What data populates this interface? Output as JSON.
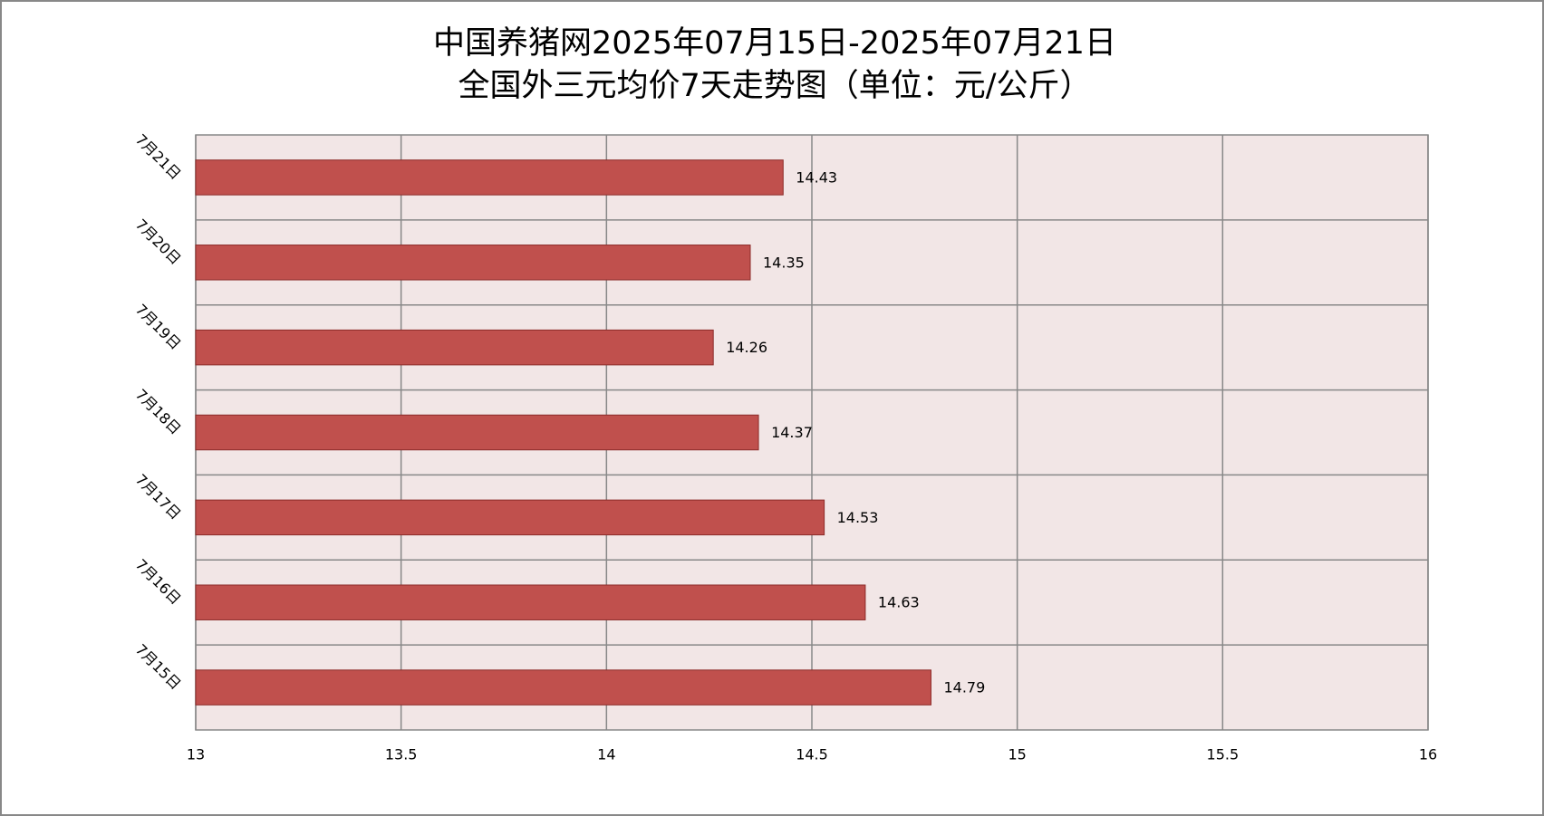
{
  "chart_data": {
    "type": "bar",
    "orientation": "horizontal",
    "title": [
      "中国养猪网2025年07月15日-2025年07月21日",
      "全国外三元均价7天走势图（单位：元/公斤）"
    ],
    "categories": [
      "7月21日",
      "7月20日",
      "7月19日",
      "7月18日",
      "7月17日",
      "7月16日",
      "7月15日"
    ],
    "values": [
      14.43,
      14.35,
      14.26,
      14.37,
      14.53,
      14.63,
      14.79
    ],
    "color": "#c0504d",
    "xlim": [
      13,
      16
    ],
    "xticks": [
      13,
      13.5,
      14,
      14.5,
      15,
      15.5,
      16
    ],
    "grid": true
  }
}
